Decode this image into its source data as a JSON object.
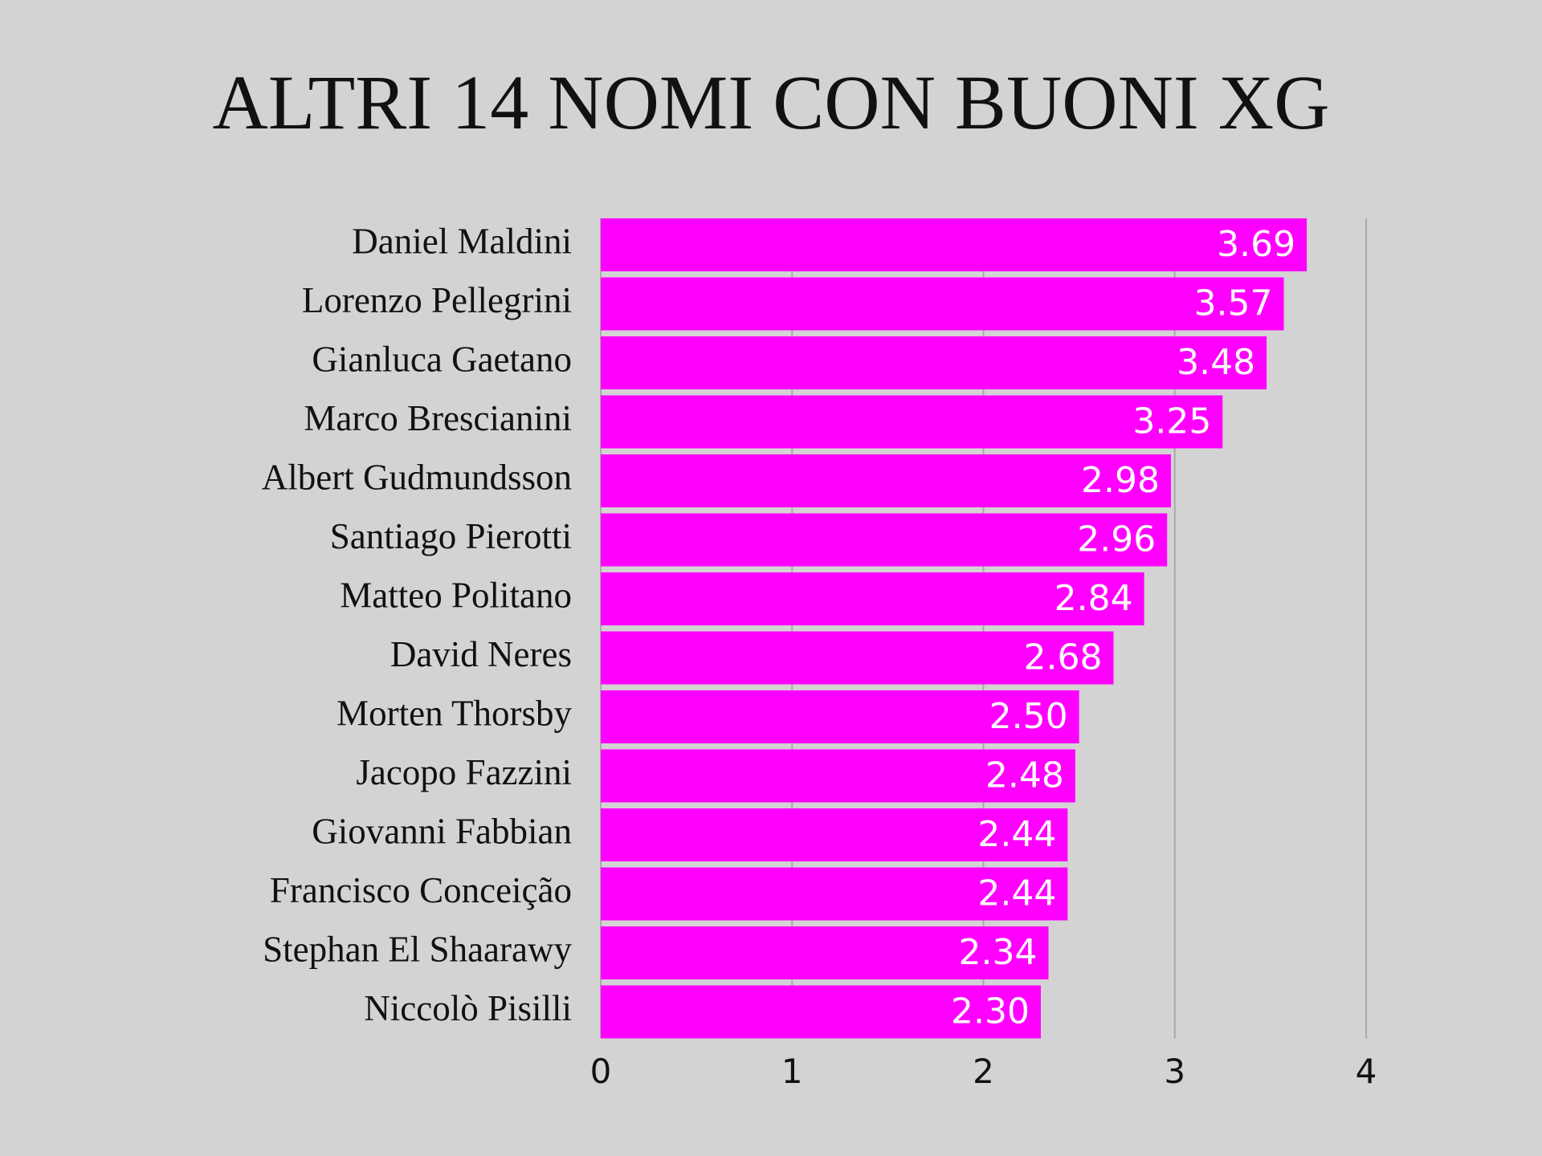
{
  "chart_data": {
    "type": "bar",
    "orientation": "horizontal",
    "title": "ALTRI 14 NOMI CON BUONI XG",
    "categories": [
      "Daniel Maldini",
      "Lorenzo Pellegrini",
      "Gianluca Gaetano",
      "Marco Brescianini",
      "Albert Gudmundsson",
      "Santiago Pierotti",
      "Matteo Politano",
      "David Neres",
      "Morten Thorsby",
      "Jacopo Fazzini",
      "Giovanni Fabbian",
      "Francisco Conceição",
      "Stephan El Shaarawy",
      "Niccolò Pisilli"
    ],
    "values": [
      3.69,
      3.57,
      3.48,
      3.25,
      2.98,
      2.96,
      2.84,
      2.68,
      2.5,
      2.48,
      2.44,
      2.44,
      2.34,
      2.3
    ],
    "value_labels": [
      "3.69",
      "3.57",
      "3.48",
      "3.25",
      "2.98",
      "2.96",
      "2.84",
      "2.68",
      "2.50",
      "2.48",
      "2.44",
      "2.44",
      "2.34",
      "2.30"
    ],
    "color": "#ff00ff",
    "xlim": [
      0,
      4
    ],
    "xticks": [
      0,
      1,
      2,
      3,
      4
    ],
    "grid": true
  }
}
